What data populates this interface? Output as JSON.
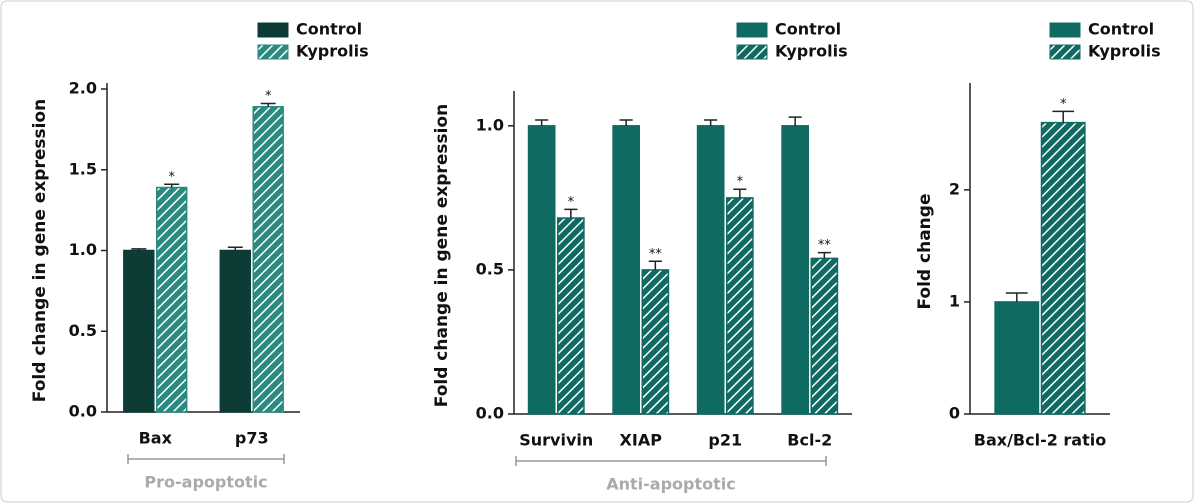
{
  "chart_data": [
    {
      "type": "bar",
      "ylabel": "Fold change in gene expression",
      "categories": [
        "Bax",
        "p73"
      ],
      "series": [
        {
          "name": "Control",
          "color": "#0d3b36",
          "hatch": false,
          "values": [
            1.0,
            1.0
          ],
          "errors": [
            0.01,
            0.02
          ]
        },
        {
          "name": "Kyprolis",
          "color": "#2a8a80",
          "hatch": true,
          "values": [
            1.39,
            1.89
          ],
          "errors": [
            0.02,
            0.02
          ]
        }
      ],
      "annotations": [
        "*",
        "*"
      ],
      "group_label": "Pro-apoptotic",
      "ylim": [
        0,
        2
      ],
      "yticks": [
        {
          "value": 0,
          "label": "0.0"
        },
        {
          "value": 0.5,
          "label": "0.5"
        },
        {
          "value": 1,
          "label": "1.0"
        },
        {
          "value": 1.5,
          "label": "1.5"
        },
        {
          "value": 2,
          "label": "2.0"
        }
      ]
    },
    {
      "type": "bar",
      "ylabel": "Fold change in gene expression",
      "categories": [
        "Survivin",
        "XIAP",
        "p21",
        "Bcl-2"
      ],
      "series": [
        {
          "name": "Control",
          "color": "#0f6b62",
          "hatch": false,
          "values": [
            1.0,
            1.0,
            1.0,
            1.0
          ],
          "errors": [
            0.02,
            0.02,
            0.02,
            0.03
          ]
        },
        {
          "name": "Kyprolis",
          "color": "#0f6b62",
          "hatch": true,
          "values": [
            0.68,
            0.5,
            0.75,
            0.54
          ],
          "errors": [
            0.03,
            0.03,
            0.03,
            0.02
          ]
        }
      ],
      "annotations": [
        "*",
        "**",
        "*",
        "**"
      ],
      "group_label": "Anti-apoptotic",
      "ylim": [
        0,
        1.1
      ],
      "yticks": [
        {
          "value": 0,
          "label": "0.0"
        },
        {
          "value": 0.5,
          "label": "0.5"
        },
        {
          "value": 1,
          "label": "1.0"
        }
      ]
    },
    {
      "type": "bar",
      "ylabel": "Fold change",
      "categories": [
        "Bax/Bcl-2 ratio"
      ],
      "series": [
        {
          "name": "Control",
          "color": "#0f6b62",
          "hatch": false,
          "values": [
            1.0
          ],
          "errors": [
            0.08
          ]
        },
        {
          "name": "Kyprolis",
          "color": "#0f6b62",
          "hatch": true,
          "values": [
            2.6
          ],
          "errors": [
            0.1
          ]
        }
      ],
      "annotations": [
        "*"
      ],
      "ylim": [
        0,
        2.9
      ],
      "yticks": [
        0,
        1,
        2
      ]
    }
  ]
}
